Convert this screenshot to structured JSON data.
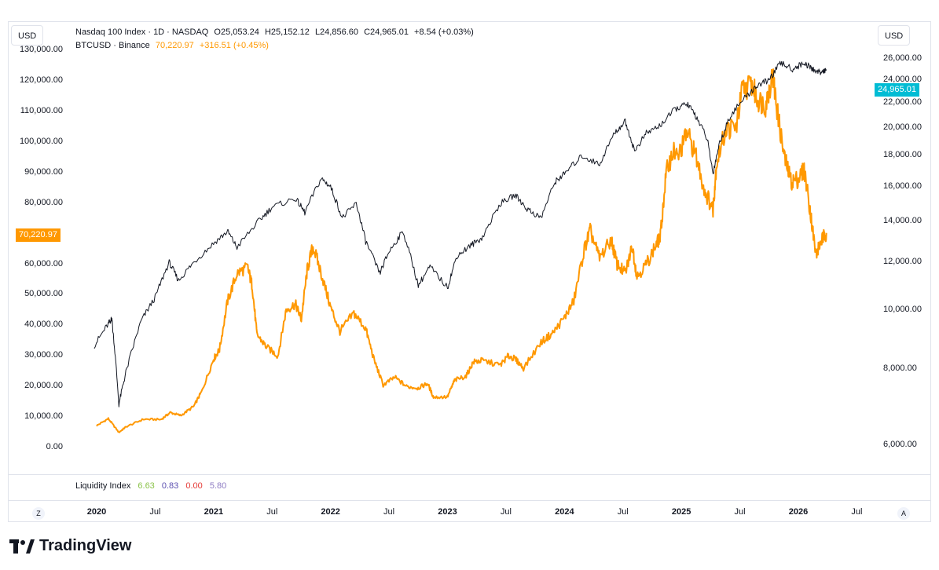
{
  "header": {
    "currency_left": "USD",
    "currency_right": "USD",
    "main_symbol": "Nasdaq 100 Index · 1D · NASDAQ",
    "main_open": "O25,053.24",
    "main_high": "H25,152.12",
    "main_low": "L24,856.60",
    "main_close": "C24,965.01",
    "main_change": "+8.54 (+0.03%)",
    "overlay_symbol": "BTCUSD · Binance",
    "overlay_price": "70,220.97",
    "overlay_change": "+316.51 (+0.45%)"
  },
  "indicator": {
    "name": "Liquidity Index",
    "values": [
      "6.63",
      "0.83",
      "0.00",
      "5.80"
    ],
    "colors": [
      "#8bc34a",
      "#5b4fb0",
      "#e53935",
      "#8e7cc3"
    ]
  },
  "price_tags": {
    "left": "70,220.97",
    "right": "24,965.01",
    "left_color": "#ff9800",
    "right_color": "#00bcd4"
  },
  "branding": {
    "logo_text": "TradingView",
    "logo_icon": "tradingview-logo-icon"
  },
  "buttons": {
    "left_circle": "Z",
    "right_circle": "A"
  },
  "chart_data": {
    "type": "line",
    "title": "",
    "left_axis": {
      "series": "BTCUSD",
      "ticks": [
        "0.00",
        "10,000.00",
        "20,000.00",
        "30,000.00",
        "40,000.00",
        "50,000.00",
        "60,000.00",
        "80,000.00",
        "90,000.00",
        "100,000.00",
        "110,000.00",
        "120,000.00",
        "130,000.00"
      ],
      "ylim": [
        -2000,
        131000
      ]
    },
    "right_axis": {
      "series": "Nasdaq 100 Index",
      "ticks": [
        "6,000.00",
        "8,000.00",
        "10,000.00",
        "12,000.00",
        "14,000.00",
        "16,000.00",
        "18,000.00",
        "20,000.00",
        "22,000.00",
        "24,000.00",
        "26,000.00"
      ],
      "ylim": [
        5800,
        26700
      ],
      "scale": "log"
    },
    "x_ticks": [
      {
        "label": "2020",
        "bold": true,
        "t": 2020.0
      },
      {
        "label": "Jul",
        "bold": false,
        "t": 2020.5
      },
      {
        "label": "2021",
        "bold": true,
        "t": 2021.0
      },
      {
        "label": "Jul",
        "bold": false,
        "t": 2021.5
      },
      {
        "label": "2022",
        "bold": true,
        "t": 2022.0
      },
      {
        "label": "Jul",
        "bold": false,
        "t": 2022.5
      },
      {
        "label": "2023",
        "bold": true,
        "t": 2023.0
      },
      {
        "label": "Jul",
        "bold": false,
        "t": 2023.5
      },
      {
        "label": "2024",
        "bold": true,
        "t": 2024.0
      },
      {
        "label": "Jul",
        "bold": false,
        "t": 2024.5
      },
      {
        "label": "2025",
        "bold": true,
        "t": 2025.0
      },
      {
        "label": "Jul",
        "bold": false,
        "t": 2025.5
      },
      {
        "label": "2026",
        "bold": true,
        "t": 2026.0
      },
      {
        "label": "Jul",
        "bold": false,
        "t": 2026.5
      }
    ],
    "series": [
      {
        "name": "BTCUSD",
        "axis": "left",
        "color": "#ff9800",
        "points": [
          [
            2020.0,
            7200
          ],
          [
            2020.1,
            9500
          ],
          [
            2020.19,
            5000
          ],
          [
            2020.25,
            6800
          ],
          [
            2020.4,
            9300
          ],
          [
            2020.55,
            9200
          ],
          [
            2020.63,
            11500
          ],
          [
            2020.72,
            10500
          ],
          [
            2020.83,
            13500
          ],
          [
            2020.9,
            18500
          ],
          [
            2021.0,
            29000
          ],
          [
            2021.05,
            32000
          ],
          [
            2021.12,
            48000
          ],
          [
            2021.2,
            57000
          ],
          [
            2021.29,
            59000
          ],
          [
            2021.33,
            53000
          ],
          [
            2021.37,
            37000
          ],
          [
            2021.45,
            33000
          ],
          [
            2021.55,
            30000
          ],
          [
            2021.62,
            45000
          ],
          [
            2021.7,
            47000
          ],
          [
            2021.75,
            42000
          ],
          [
            2021.8,
            58000
          ],
          [
            2021.85,
            66000
          ],
          [
            2021.92,
            57000
          ],
          [
            2022.0,
            46000
          ],
          [
            2022.08,
            38000
          ],
          [
            2022.2,
            44000
          ],
          [
            2022.3,
            39000
          ],
          [
            2022.37,
            29000
          ],
          [
            2022.45,
            20500
          ],
          [
            2022.55,
            23000
          ],
          [
            2022.65,
            20000
          ],
          [
            2022.75,
            19500
          ],
          [
            2022.83,
            21000
          ],
          [
            2022.88,
            16500
          ],
          [
            2023.0,
            16600
          ],
          [
            2023.06,
            22000
          ],
          [
            2023.16,
            23500
          ],
          [
            2023.22,
            28000
          ],
          [
            2023.3,
            28500
          ],
          [
            2023.45,
            27000
          ],
          [
            2023.52,
            30000
          ],
          [
            2023.58,
            29000
          ],
          [
            2023.65,
            26000
          ],
          [
            2023.8,
            34500
          ],
          [
            2023.9,
            37500
          ],
          [
            2024.0,
            42500
          ],
          [
            2024.08,
            48000
          ],
          [
            2024.17,
            65000
          ],
          [
            2024.22,
            71000
          ],
          [
            2024.3,
            62000
          ],
          [
            2024.4,
            68000
          ],
          [
            2024.45,
            60000
          ],
          [
            2024.52,
            57000
          ],
          [
            2024.58,
            66000
          ],
          [
            2024.62,
            56000
          ],
          [
            2024.7,
            60000
          ],
          [
            2024.78,
            66000
          ],
          [
            2024.82,
            69000
          ],
          [
            2024.87,
            90000
          ],
          [
            2024.93,
            97000
          ],
          [
            2024.97,
            95000
          ],
          [
            2025.05,
            103000
          ],
          [
            2025.12,
            96000
          ],
          [
            2025.2,
            84000
          ],
          [
            2025.27,
            78000
          ],
          [
            2025.3,
            93000
          ],
          [
            2025.38,
            104000
          ],
          [
            2025.47,
            105000
          ],
          [
            2025.52,
            117000
          ],
          [
            2025.6,
            119000
          ],
          [
            2025.65,
            114000
          ],
          [
            2025.72,
            112000
          ],
          [
            2025.78,
            122000
          ],
          [
            2025.82,
            110000
          ],
          [
            2025.88,
            95000
          ],
          [
            2025.94,
            87000
          ],
          [
            2026.0,
            88000
          ],
          [
            2026.05,
            91000
          ],
          [
            2026.1,
            78000
          ],
          [
            2026.15,
            63000
          ],
          [
            2026.2,
            68000
          ],
          [
            2026.24,
            70221
          ]
        ]
      },
      {
        "name": "Nasdaq 100 Index",
        "axis": "right",
        "color": "#131722",
        "points": [
          [
            2019.98,
            8750
          ],
          [
            2020.1,
            9500
          ],
          [
            2020.13,
            9700
          ],
          [
            2020.19,
            7000
          ],
          [
            2020.25,
            7900
          ],
          [
            2020.38,
            9600
          ],
          [
            2020.5,
            10500
          ],
          [
            2020.62,
            12000
          ],
          [
            2020.7,
            11200
          ],
          [
            2020.83,
            12000
          ],
          [
            2021.0,
            12900
          ],
          [
            2021.12,
            13500
          ],
          [
            2021.2,
            12700
          ],
          [
            2021.38,
            14000
          ],
          [
            2021.5,
            14800
          ],
          [
            2021.7,
            15300
          ],
          [
            2021.78,
            14500
          ],
          [
            2021.92,
            16500
          ],
          [
            2022.0,
            16000
          ],
          [
            2022.1,
            14200
          ],
          [
            2022.22,
            15000
          ],
          [
            2022.3,
            13000
          ],
          [
            2022.42,
            11500
          ],
          [
            2022.5,
            12500
          ],
          [
            2022.62,
            13500
          ],
          [
            2022.75,
            11000
          ],
          [
            2022.85,
            11800
          ],
          [
            2023.0,
            10900
          ],
          [
            2023.08,
            12300
          ],
          [
            2023.2,
            12800
          ],
          [
            2023.3,
            13200
          ],
          [
            2023.45,
            15000
          ],
          [
            2023.58,
            15500
          ],
          [
            2023.68,
            14700
          ],
          [
            2023.8,
            14200
          ],
          [
            2023.92,
            16300
          ],
          [
            2024.0,
            16800
          ],
          [
            2024.15,
            18000
          ],
          [
            2024.3,
            17400
          ],
          [
            2024.42,
            19500
          ],
          [
            2024.52,
            20500
          ],
          [
            2024.6,
            18300
          ],
          [
            2024.7,
            19600
          ],
          [
            2024.82,
            20200
          ],
          [
            2024.95,
            21500
          ],
          [
            2025.05,
            21900
          ],
          [
            2025.12,
            21000
          ],
          [
            2025.22,
            19200
          ],
          [
            2025.27,
            16800
          ],
          [
            2025.32,
            18700
          ],
          [
            2025.42,
            21000
          ],
          [
            2025.55,
            22500
          ],
          [
            2025.65,
            23500
          ],
          [
            2025.75,
            24000
          ],
          [
            2025.85,
            25600
          ],
          [
            2025.95,
            25000
          ],
          [
            2026.05,
            25600
          ],
          [
            2026.12,
            25000
          ],
          [
            2026.18,
            24700
          ],
          [
            2026.24,
            24965
          ]
        ]
      }
    ],
    "grid": false
  }
}
